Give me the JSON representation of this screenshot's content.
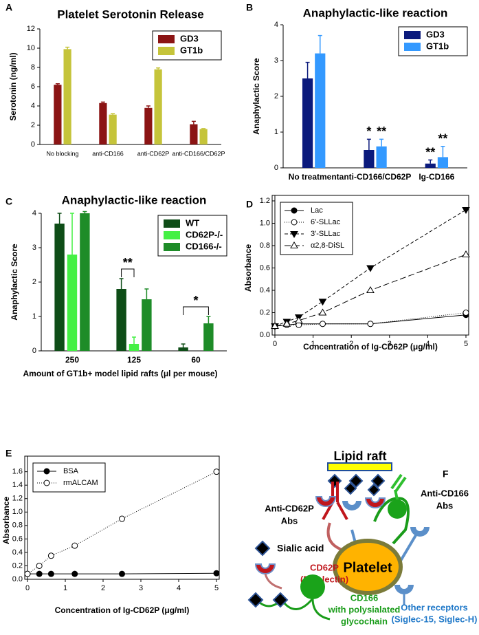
{
  "chart_data": [
    {
      "type": "bar",
      "label": "A",
      "title": "Platelet Serotonin Release",
      "ylabel": "Serotonin (ng/ml)",
      "categories": [
        "No blocking",
        "anti-CD166",
        "anti-CD62P",
        "anti-CD166/CD62P"
      ],
      "series": [
        {
          "name": "GD3",
          "color": "#8b1414",
          "values": [
            6.2,
            4.3,
            3.8,
            2.1
          ],
          "errors": [
            0.1,
            0.1,
            0.2,
            0.3
          ]
        },
        {
          "name": "GT1b",
          "color": "#c5c43a",
          "values": [
            9.9,
            3.1,
            7.8,
            1.6
          ],
          "errors": [
            0.2,
            0.1,
            0.15,
            0.05
          ]
        }
      ],
      "ylim": [
        0,
        12
      ],
      "yticks": [
        0,
        2,
        4,
        6,
        8,
        10,
        12
      ],
      "legend": "upper right"
    },
    {
      "type": "bar",
      "label": "B",
      "title": "Anaphylactic-like reaction",
      "ylabel": "Anaphylactic Score",
      "categories": [
        "No treatment",
        "anti-CD166/CD62P",
        "Ig-CD166"
      ],
      "series": [
        {
          "name": "GD3",
          "color": "#0b1a7c",
          "values": [
            2.5,
            0.5,
            0.12
          ],
          "errors": [
            0.45,
            0.3,
            0.1
          ],
          "significance": [
            null,
            "*",
            "**"
          ]
        },
        {
          "name": "GT1b",
          "color": "#3399ff",
          "values": [
            3.2,
            0.6,
            0.3
          ],
          "errors": [
            0.5,
            0.2,
            0.3
          ],
          "significance": [
            null,
            "**",
            "**"
          ]
        }
      ],
      "ylim": [
        0,
        4
      ],
      "yticks": [
        0,
        1,
        2,
        3,
        4
      ],
      "legend": "upper right"
    },
    {
      "type": "bar",
      "label": "C",
      "title": "Anaphylactic-like reaction",
      "ylabel": "Anaphylactic Score",
      "xlabel": "Amount of GT1b+ model lipid rafts (μl per mouse)",
      "categories": [
        "250",
        "125",
        "60"
      ],
      "series": [
        {
          "name": "WT",
          "color": "#0e4d17",
          "values": [
            3.7,
            1.8,
            0.1
          ],
          "errors": [
            0.3,
            0.3,
            0.1
          ]
        },
        {
          "name": "CD62P-/-",
          "color": "#44f044",
          "values": [
            2.8,
            0.2,
            0
          ],
          "errors": [
            1.2,
            0.2,
            null
          ]
        },
        {
          "name": "CD166-/-",
          "color": "#1e8c28",
          "values": [
            4.0,
            1.5,
            0.8
          ],
          "errors": [
            0.05,
            0.3,
            0.2
          ]
        }
      ],
      "brackets": [
        {
          "label": "**",
          "category": "125",
          "from": "WT",
          "to": "CD62P-/-"
        },
        {
          "label": "*",
          "category": "60",
          "from": "WT",
          "to": "CD166-/-"
        }
      ],
      "ylim": [
        0,
        4
      ],
      "yticks": [
        0,
        1,
        2,
        3,
        4
      ],
      "legend": "upper right"
    },
    {
      "type": "line",
      "label": "D",
      "ylabel": "Absorbance",
      "xlabel": "Concentration of Ig-CD62P (μg/ml)",
      "x": [
        0,
        0.3125,
        0.625,
        1.25,
        2.5,
        5
      ],
      "series": [
        {
          "name": "Lac",
          "color": "#000000",
          "marker": "circle",
          "filled": true,
          "dash": "solid",
          "values": [
            0.08,
            0.09,
            0.1,
            0.1,
            0.1,
            0.18
          ]
        },
        {
          "name": "6'-SLLac",
          "color": "#000000",
          "marker": "circle",
          "filled": false,
          "dash": "dotted",
          "values": [
            0.08,
            0.09,
            0.09,
            0.1,
            0.1,
            0.2
          ]
        },
        {
          "name": "3'-SLLac",
          "color": "#000000",
          "marker": "triangle-down",
          "filled": true,
          "dash": "dashed",
          "values": [
            0.08,
            0.12,
            0.16,
            0.3,
            0.6,
            1.12
          ]
        },
        {
          "name": "α2,8-DiSL",
          "color": "#000000",
          "marker": "triangle-up",
          "filled": false,
          "dash": "longdash",
          "values": [
            0.08,
            0.1,
            0.13,
            0.2,
            0.4,
            0.72
          ]
        }
      ],
      "xlim": [
        0,
        5
      ],
      "xticks": [
        0,
        1,
        2,
        3,
        4,
        5
      ],
      "ylim": [
        0,
        1.2
      ],
      "yticks": [
        {
          "value": 0,
          "label": "0.0"
        },
        0.2,
        0.4,
        0.6,
        0.8,
        {
          "value": 1,
          "label": "1.0"
        },
        1.2
      ],
      "legend": "upper left"
    },
    {
      "type": "line",
      "label": "E",
      "ylabel": "Absorbance",
      "xlabel": "Concentration of Ig-CD62P (μg/ml)",
      "x": [
        0,
        0.3125,
        0.625,
        1.25,
        2.5,
        5
      ],
      "series": [
        {
          "name": "BSA",
          "color": "#000000",
          "marker": "circle",
          "filled": true,
          "dash": "solid",
          "values": [
            0.08,
            0.08,
            0.08,
            0.08,
            0.08,
            0.09
          ]
        },
        {
          "name": "rmALCAM",
          "color": "#000000",
          "marker": "circle",
          "filled": false,
          "dash": "dotted",
          "values": [
            0.08,
            0.2,
            0.35,
            0.5,
            0.9,
            1.6
          ]
        }
      ],
      "xlim": [
        0,
        5
      ],
      "xticks": [
        0,
        1,
        2,
        3,
        4,
        5
      ],
      "ylim": [
        0,
        1.75
      ],
      "yticks": [
        {
          "value": 0,
          "label": "0.0"
        },
        0.2,
        0.4,
        0.6,
        0.8,
        {
          "value": 1,
          "label": "1.0"
        },
        1.2,
        1.4,
        1.6
      ],
      "legend": "upper left"
    }
  ],
  "diagram": {
    "label": "F",
    "raft": "Lipid raft",
    "anti_cd62p": [
      "Anti-CD62P",
      "Abs"
    ],
    "anti_cd166": [
      "Anti-CD166",
      "Abs"
    ],
    "sialic": "Sialic acid",
    "platelet": "Platelet",
    "cd62p": [
      "CD62P",
      "(P-selectin)"
    ],
    "other": [
      "Other receptors",
      "(Siglec-15, Siglec-H)"
    ],
    "cd166": [
      "CD166",
      "with polysialated",
      "glycochain"
    ]
  }
}
